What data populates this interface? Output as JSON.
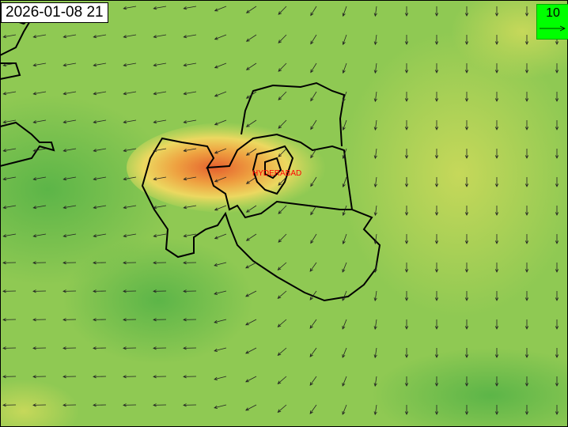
{
  "timestamp": "2026-01-08 21",
  "legend": {
    "reference_vector_value": "10",
    "color": "#00ff00"
  },
  "city_label": "HYDERABAD",
  "colors": {
    "low": "#6cbf4a",
    "mid": "#a8d058",
    "high": "#e0e060",
    "hotspot": "#e8703a",
    "label": "#ff0000"
  },
  "icons": {
    "vector": "wind-arrow"
  }
}
